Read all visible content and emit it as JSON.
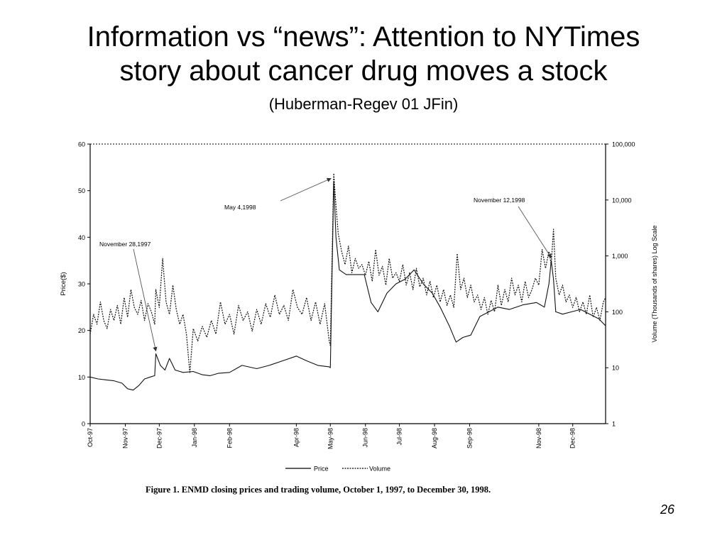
{
  "slide": {
    "title_line1": "Information vs “news”: Attention to NYTimes",
    "title_line2": "story about cancer drug moves a stock",
    "subtitle": "(Huberman-Regev 01 JFin)",
    "page_number": "26"
  },
  "figure": {
    "caption": "Figure 1. ENMD closing prices and trading volume, October 1, 1997, to December 30, 1998."
  },
  "chart_data": {
    "type": "line",
    "ylabel_left": "Price($)",
    "ylabel_right": "Volume (Thousands of  shares) Log Scale",
    "ylim_left": [
      0,
      60
    ],
    "yticks_left": [
      "0",
      "10",
      "20",
      "30",
      "40",
      "50",
      "60"
    ],
    "ylim_right": [
      1,
      100000
    ],
    "yscale_right": "log",
    "yticks_right": [
      "1",
      "10",
      "100",
      "1,000",
      "10,000",
      "100,000"
    ],
    "xlim": [
      "1997-10-01",
      "1998-12-30"
    ],
    "x_tick_labels": [
      "Oct-97",
      "Nov-97",
      "Dec-97",
      "Jan-98",
      "Feb-98",
      "Apr-98",
      "May-98",
      "Jun-98",
      "Jul-98",
      "Aug-98",
      "Sep-98",
      "Nov-98",
      "Dec-98"
    ],
    "x_tick_dates": [
      "1997-10-01",
      "1997-11-01",
      "1997-12-01",
      "1998-01-01",
      "1998-02-01",
      "1998-04-01",
      "1998-05-01",
      "1998-06-01",
      "1998-07-01",
      "1998-08-01",
      "1998-09-01",
      "1998-11-01",
      "1998-12-01"
    ],
    "legend": {
      "position": "bottom",
      "entries": [
        "Price",
        "Volume"
      ]
    },
    "series": [
      {
        "name": "Price",
        "axis": "left",
        "style": "solid",
        "points": [
          [
            "1997-10-01",
            10
          ],
          [
            "1997-10-08",
            9.6
          ],
          [
            "1997-10-15",
            9.4
          ],
          [
            "1997-10-22",
            9.2
          ],
          [
            "1997-10-29",
            8.7
          ],
          [
            "1997-11-03",
            7.5
          ],
          [
            "1997-11-08",
            7.2
          ],
          [
            "1997-11-13",
            8.2
          ],
          [
            "1997-11-18",
            9.6
          ],
          [
            "1997-11-23",
            10
          ],
          [
            "1997-11-27",
            10.3
          ],
          [
            "1997-11-28",
            15
          ],
          [
            "1997-12-02",
            12.5
          ],
          [
            "1997-12-06",
            11.5
          ],
          [
            "1997-12-10",
            14
          ],
          [
            "1997-12-15",
            11.5
          ],
          [
            "1997-12-22",
            11
          ],
          [
            "1997-12-31",
            11.2
          ],
          [
            "1998-01-08",
            10.5
          ],
          [
            "1998-01-15",
            10.3
          ],
          [
            "1998-01-22",
            10.8
          ],
          [
            "1998-02-01",
            11
          ],
          [
            "1998-02-12",
            12.5
          ],
          [
            "1998-02-25",
            11.8
          ],
          [
            "1998-03-08",
            12.5
          ],
          [
            "1998-03-20",
            13.5
          ],
          [
            "1998-04-01",
            14.5
          ],
          [
            "1998-04-10",
            13.5
          ],
          [
            "1998-04-20",
            12.5
          ],
          [
            "1998-04-30",
            12.2
          ],
          [
            "1998-05-01",
            12
          ],
          [
            "1998-05-04",
            52
          ],
          [
            "1998-05-06",
            40
          ],
          [
            "1998-05-09",
            33
          ],
          [
            "1998-05-15",
            32
          ],
          [
            "1998-05-22",
            32
          ],
          [
            "1998-05-31",
            32
          ],
          [
            "1998-06-06",
            26
          ],
          [
            "1998-06-12",
            24
          ],
          [
            "1998-06-20",
            28
          ],
          [
            "1998-06-28",
            30
          ],
          [
            "1998-07-06",
            31
          ],
          [
            "1998-07-14",
            33
          ],
          [
            "1998-07-22",
            30
          ],
          [
            "1998-07-30",
            28
          ],
          [
            "1998-08-06",
            25
          ],
          [
            "1998-08-14",
            21
          ],
          [
            "1998-08-20",
            17.5
          ],
          [
            "1998-08-26",
            18.5
          ],
          [
            "1998-09-02",
            19
          ],
          [
            "1998-09-10",
            23
          ],
          [
            "1998-09-18",
            24
          ],
          [
            "1998-09-26",
            25
          ],
          [
            "1998-10-06",
            24.5
          ],
          [
            "1998-10-18",
            25.5
          ],
          [
            "1998-10-30",
            26
          ],
          [
            "1998-11-06",
            25
          ],
          [
            "1998-11-10",
            30
          ],
          [
            "1998-11-12",
            35
          ],
          [
            "1998-11-14",
            31
          ],
          [
            "1998-11-16",
            24
          ],
          [
            "1998-11-22",
            23.5
          ],
          [
            "1998-11-30",
            24
          ],
          [
            "1998-12-08",
            24.5
          ],
          [
            "1998-12-16",
            23.5
          ],
          [
            "1998-12-24",
            22.5
          ],
          [
            "1998-12-30",
            21
          ]
        ]
      },
      {
        "name": "Volume",
        "axis": "right",
        "style": "dotted",
        "points": [
          [
            "1997-10-01",
            40
          ],
          [
            "1997-10-04",
            90
          ],
          [
            "1997-10-07",
            60
          ],
          [
            "1997-10-10",
            150
          ],
          [
            "1997-10-13",
            70
          ],
          [
            "1997-10-16",
            50
          ],
          [
            "1997-10-19",
            110
          ],
          [
            "1997-10-22",
            70
          ],
          [
            "1997-10-25",
            130
          ],
          [
            "1997-10-28",
            60
          ],
          [
            "1997-10-31",
            180
          ],
          [
            "1997-11-03",
            80
          ],
          [
            "1997-11-06",
            250
          ],
          [
            "1997-11-09",
            120
          ],
          [
            "1997-11-12",
            90
          ],
          [
            "1997-11-15",
            160
          ],
          [
            "1997-11-18",
            70
          ],
          [
            "1997-11-21",
            140
          ],
          [
            "1997-11-24",
            100
          ],
          [
            "1997-11-27",
            60
          ],
          [
            "1997-11-28",
            250
          ],
          [
            "1997-12-01",
            120
          ],
          [
            "1997-12-04",
            900
          ],
          [
            "1997-12-07",
            150
          ],
          [
            "1997-12-10",
            90
          ],
          [
            "1997-12-13",
            300
          ],
          [
            "1997-12-16",
            110
          ],
          [
            "1997-12-19",
            60
          ],
          [
            "1997-12-22",
            90
          ],
          [
            "1997-12-25",
            40
          ],
          [
            "1997-12-28",
            8
          ],
          [
            "1997-12-31",
            50
          ],
          [
            "1998-01-04",
            30
          ],
          [
            "1998-01-08",
            55
          ],
          [
            "1998-01-12",
            35
          ],
          [
            "1998-01-16",
            70
          ],
          [
            "1998-01-20",
            40
          ],
          [
            "1998-01-24",
            150
          ],
          [
            "1998-01-28",
            60
          ],
          [
            "1998-02-01",
            90
          ],
          [
            "1998-02-05",
            40
          ],
          [
            "1998-02-09",
            130
          ],
          [
            "1998-02-13",
            70
          ],
          [
            "1998-02-17",
            100
          ],
          [
            "1998-02-21",
            45
          ],
          [
            "1998-02-25",
            110
          ],
          [
            "1998-03-01",
            60
          ],
          [
            "1998-03-05",
            140
          ],
          [
            "1998-03-09",
            80
          ],
          [
            "1998-03-13",
            200
          ],
          [
            "1998-03-17",
            90
          ],
          [
            "1998-03-21",
            130
          ],
          [
            "1998-03-25",
            70
          ],
          [
            "1998-03-29",
            250
          ],
          [
            "1998-04-02",
            120
          ],
          [
            "1998-04-06",
            90
          ],
          [
            "1998-04-10",
            180
          ],
          [
            "1998-04-14",
            70
          ],
          [
            "1998-04-18",
            150
          ],
          [
            "1998-04-22",
            60
          ],
          [
            "1998-04-26",
            140
          ],
          [
            "1998-04-30",
            30
          ],
          [
            "1998-05-01",
            25
          ],
          [
            "1998-05-04",
            30000
          ],
          [
            "1998-05-06",
            8000
          ],
          [
            "1998-05-08",
            2500
          ],
          [
            "1998-05-11",
            1200
          ],
          [
            "1998-05-14",
            700
          ],
          [
            "1998-05-17",
            1500
          ],
          [
            "1998-05-20",
            500
          ],
          [
            "1998-05-23",
            900
          ],
          [
            "1998-05-26",
            600
          ],
          [
            "1998-05-29",
            700
          ],
          [
            "1998-06-01",
            450
          ],
          [
            "1998-06-04",
            800
          ],
          [
            "1998-06-07",
            350
          ],
          [
            "1998-06-10",
            1300
          ],
          [
            "1998-06-13",
            450
          ],
          [
            "1998-06-16",
            650
          ],
          [
            "1998-06-19",
            300
          ],
          [
            "1998-06-22",
            900
          ],
          [
            "1998-06-25",
            400
          ],
          [
            "1998-06-28",
            500
          ],
          [
            "1998-07-01",
            350
          ],
          [
            "1998-07-04",
            700
          ],
          [
            "1998-07-07",
            300
          ],
          [
            "1998-07-10",
            500
          ],
          [
            "1998-07-13",
            250
          ],
          [
            "1998-07-16",
            600
          ],
          [
            "1998-07-19",
            280
          ],
          [
            "1998-07-22",
            400
          ],
          [
            "1998-07-25",
            200
          ],
          [
            "1998-07-28",
            350
          ],
          [
            "1998-07-31",
            180
          ],
          [
            "1998-08-03",
            300
          ],
          [
            "1998-08-06",
            150
          ],
          [
            "1998-08-09",
            250
          ],
          [
            "1998-08-12",
            130
          ],
          [
            "1998-08-15",
            200
          ],
          [
            "1998-08-18",
            120
          ],
          [
            "1998-08-21",
            1100
          ],
          [
            "1998-08-24",
            250
          ],
          [
            "1998-08-27",
            400
          ],
          [
            "1998-08-30",
            180
          ],
          [
            "1998-09-02",
            300
          ],
          [
            "1998-09-05",
            150
          ],
          [
            "1998-09-08",
            200
          ],
          [
            "1998-09-11",
            110
          ],
          [
            "1998-09-14",
            180
          ],
          [
            "1998-09-17",
            90
          ],
          [
            "1998-09-20",
            160
          ],
          [
            "1998-09-23",
            100
          ],
          [
            "1998-09-26",
            300
          ],
          [
            "1998-09-29",
            130
          ],
          [
            "1998-10-02",
            250
          ],
          [
            "1998-10-05",
            150
          ],
          [
            "1998-10-08",
            400
          ],
          [
            "1998-10-11",
            200
          ],
          [
            "1998-10-14",
            300
          ],
          [
            "1998-10-17",
            150
          ],
          [
            "1998-10-20",
            350
          ],
          [
            "1998-10-23",
            180
          ],
          [
            "1998-10-26",
            250
          ],
          [
            "1998-10-29",
            400
          ],
          [
            "1998-11-01",
            300
          ],
          [
            "1998-11-04",
            1300
          ],
          [
            "1998-11-07",
            600
          ],
          [
            "1998-11-10",
            1200
          ],
          [
            "1998-11-12",
            700
          ],
          [
            "1998-11-14",
            3000
          ],
          [
            "1998-11-16",
            400
          ],
          [
            "1998-11-19",
            200
          ],
          [
            "1998-11-22",
            300
          ],
          [
            "1998-11-25",
            150
          ],
          [
            "1998-11-28",
            200
          ],
          [
            "1998-12-01",
            120
          ],
          [
            "1998-12-04",
            180
          ],
          [
            "1998-12-07",
            100
          ],
          [
            "1998-12-10",
            150
          ],
          [
            "1998-12-13",
            90
          ],
          [
            "1998-12-16",
            200
          ],
          [
            "1998-12-19",
            80
          ],
          [
            "1998-12-22",
            120
          ],
          [
            "1998-12-25",
            70
          ],
          [
            "1998-12-28",
            150
          ],
          [
            "1998-12-30",
            180
          ]
        ]
      }
    ],
    "annotations": [
      {
        "label": "November 28,1997",
        "target_date": "1997-11-28",
        "target_value": 15,
        "axis": "left"
      },
      {
        "label": "May 4,1998",
        "target_date": "1998-05-04",
        "target_value": 52,
        "axis": "left"
      },
      {
        "label": "November 12,1998",
        "target_date": "1998-11-12",
        "target_value": 35,
        "axis": "left"
      }
    ]
  }
}
